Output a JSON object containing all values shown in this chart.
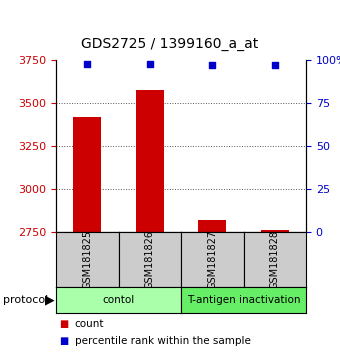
{
  "title": "GDS2725 / 1399160_a_at",
  "samples": [
    "GSM181825",
    "GSM181826",
    "GSM181827",
    "GSM181828"
  ],
  "counts": [
    3420,
    3575,
    2820,
    2760
  ],
  "percentile_ranks": [
    98,
    98,
    97,
    97
  ],
  "ylim_left": [
    2750,
    3750
  ],
  "ylim_right": [
    0,
    100
  ],
  "yticks_left": [
    2750,
    3000,
    3250,
    3500,
    3750
  ],
  "yticks_right": [
    0,
    25,
    50,
    75,
    100
  ],
  "ytick_labels_right": [
    "0",
    "25",
    "50",
    "75",
    "100%"
  ],
  "bar_color": "#cc0000",
  "dot_color": "#0000cc",
  "bar_width": 0.45,
  "groups": [
    {
      "label": "contol",
      "samples": [
        0,
        1
      ],
      "color": "#aaffaa"
    },
    {
      "label": "T-antigen inactivation",
      "samples": [
        2,
        3
      ],
      "color": "#66ee66"
    }
  ],
  "protocol_label": "protocol",
  "legend_count_label": "count",
  "legend_percentile_label": "percentile rank within the sample",
  "grid_color": "#555555",
  "background_plot": "#ffffff",
  "tick_color_left": "#cc0000",
  "tick_color_right": "#0000cc",
  "sample_box_color": "#cccccc",
  "sample_text_color": "#000000",
  "fig_width": 3.4,
  "fig_height": 3.54,
  "dpi": 100
}
